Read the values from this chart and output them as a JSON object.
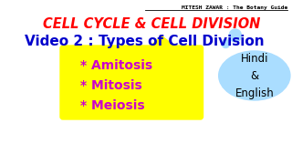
{
  "bg_color": "#ffffff",
  "top_text": "MITESH ZAWAR : The Botany Guide",
  "top_text_color": "#000000",
  "title1": "CELL CYCLE & CELL DIVISION",
  "title1_color": "#ff0000",
  "title2": "Video 2 : Types of Cell Division",
  "title2_color": "#0000cc",
  "bullet_items": [
    "* Amitosis",
    "* Mitosis",
    "* Meiosis"
  ],
  "bullet_color": "#cc00cc",
  "box_color": "#ffff00",
  "bubble_color": "#aaddff",
  "bubble_text": "Hindi\n&\nEnglish",
  "bubble_text_color": "#000000",
  "small_bubble_color": "#aaddff"
}
